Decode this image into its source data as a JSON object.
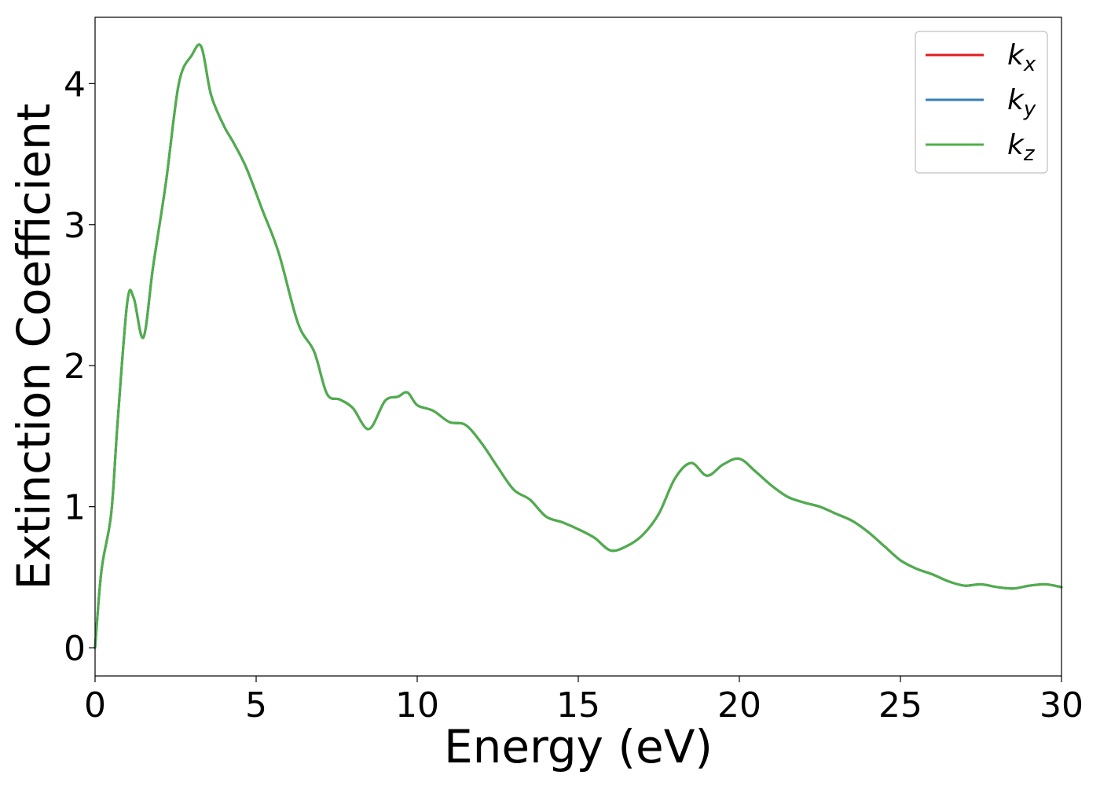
{
  "chart_data": {
    "type": "line",
    "title": "",
    "xlabel": "Energy (eV)",
    "ylabel": "Extinction Coefficient",
    "xlim": [
      0,
      30
    ],
    "ylim": [
      -0.2,
      4.47
    ],
    "xticks": [
      0,
      5,
      10,
      15,
      20,
      25,
      30
    ],
    "yticks": [
      0,
      1,
      2,
      3,
      4
    ],
    "grid": false,
    "legend_position": "top-right",
    "x": [
      0,
      0.2,
      0.5,
      0.7,
      1.0,
      1.2,
      1.5,
      1.8,
      2.2,
      2.6,
      3.0,
      3.3,
      3.6,
      4.0,
      4.3,
      4.7,
      5.2,
      5.7,
      6.3,
      6.8,
      7.2,
      7.6,
      8.0,
      8.5,
      9.0,
      9.4,
      9.7,
      10.0,
      10.5,
      11.0,
      11.5,
      12.0,
      12.5,
      13.0,
      13.5,
      14.0,
      14.5,
      15.0,
      15.5,
      16.0,
      16.5,
      17.0,
      17.5,
      18.0,
      18.5,
      19.0,
      19.5,
      20.0,
      20.5,
      21.0,
      21.5,
      22.0,
      22.5,
      23.0,
      23.5,
      24.0,
      24.5,
      25.0,
      25.5,
      26.0,
      26.5,
      27.0,
      27.5,
      28.0,
      28.5,
      29.0,
      29.5,
      30.0
    ],
    "series": [
      {
        "name": "k_x",
        "color": "#e41a1c",
        "values": [
          0.0,
          0.55,
          0.95,
          1.6,
          2.45,
          2.48,
          2.2,
          2.7,
          3.3,
          4.0,
          4.2,
          4.26,
          3.92,
          3.7,
          3.58,
          3.4,
          3.1,
          2.8,
          2.3,
          2.1,
          1.8,
          1.76,
          1.7,
          1.55,
          1.75,
          1.78,
          1.81,
          1.72,
          1.68,
          1.6,
          1.58,
          1.45,
          1.28,
          1.12,
          1.05,
          0.93,
          0.89,
          0.84,
          0.78,
          0.69,
          0.72,
          0.8,
          0.95,
          1.2,
          1.31,
          1.22,
          1.3,
          1.34,
          1.25,
          1.15,
          1.07,
          1.03,
          1.0,
          0.95,
          0.9,
          0.82,
          0.72,
          0.62,
          0.56,
          0.52,
          0.47,
          0.44,
          0.45,
          0.43,
          0.42,
          0.44,
          0.45,
          0.43
        ]
      },
      {
        "name": "k_y",
        "color": "#377eb8",
        "values": [
          0.0,
          0.55,
          0.95,
          1.6,
          2.45,
          2.48,
          2.2,
          2.7,
          3.3,
          4.0,
          4.2,
          4.26,
          3.92,
          3.7,
          3.58,
          3.4,
          3.1,
          2.8,
          2.3,
          2.1,
          1.8,
          1.76,
          1.7,
          1.55,
          1.75,
          1.78,
          1.81,
          1.72,
          1.68,
          1.6,
          1.58,
          1.45,
          1.28,
          1.12,
          1.05,
          0.93,
          0.89,
          0.84,
          0.78,
          0.69,
          0.72,
          0.8,
          0.95,
          1.2,
          1.31,
          1.22,
          1.3,
          1.34,
          1.25,
          1.15,
          1.07,
          1.03,
          1.0,
          0.95,
          0.9,
          0.82,
          0.72,
          0.62,
          0.56,
          0.52,
          0.47,
          0.44,
          0.45,
          0.43,
          0.42,
          0.44,
          0.45,
          0.43
        ]
      },
      {
        "name": "k_z",
        "color": "#4daf4a",
        "values": [
          0.0,
          0.55,
          0.95,
          1.6,
          2.45,
          2.48,
          2.2,
          2.7,
          3.3,
          4.0,
          4.2,
          4.26,
          3.92,
          3.7,
          3.58,
          3.4,
          3.1,
          2.8,
          2.3,
          2.1,
          1.8,
          1.76,
          1.7,
          1.55,
          1.75,
          1.78,
          1.81,
          1.72,
          1.68,
          1.6,
          1.58,
          1.45,
          1.28,
          1.12,
          1.05,
          0.93,
          0.89,
          0.84,
          0.78,
          0.69,
          0.72,
          0.8,
          0.95,
          1.2,
          1.31,
          1.22,
          1.3,
          1.34,
          1.25,
          1.15,
          1.07,
          1.03,
          1.0,
          0.95,
          0.9,
          0.82,
          0.72,
          0.62,
          0.56,
          0.52,
          0.47,
          0.44,
          0.45,
          0.43,
          0.42,
          0.44,
          0.45,
          0.43
        ]
      }
    ],
    "legend": [
      {
        "base": "k",
        "sub": "x",
        "color": "#e41a1c"
      },
      {
        "base": "k",
        "sub": "y",
        "color": "#377eb8"
      },
      {
        "base": "k",
        "sub": "z",
        "color": "#4daf4a"
      }
    ]
  }
}
